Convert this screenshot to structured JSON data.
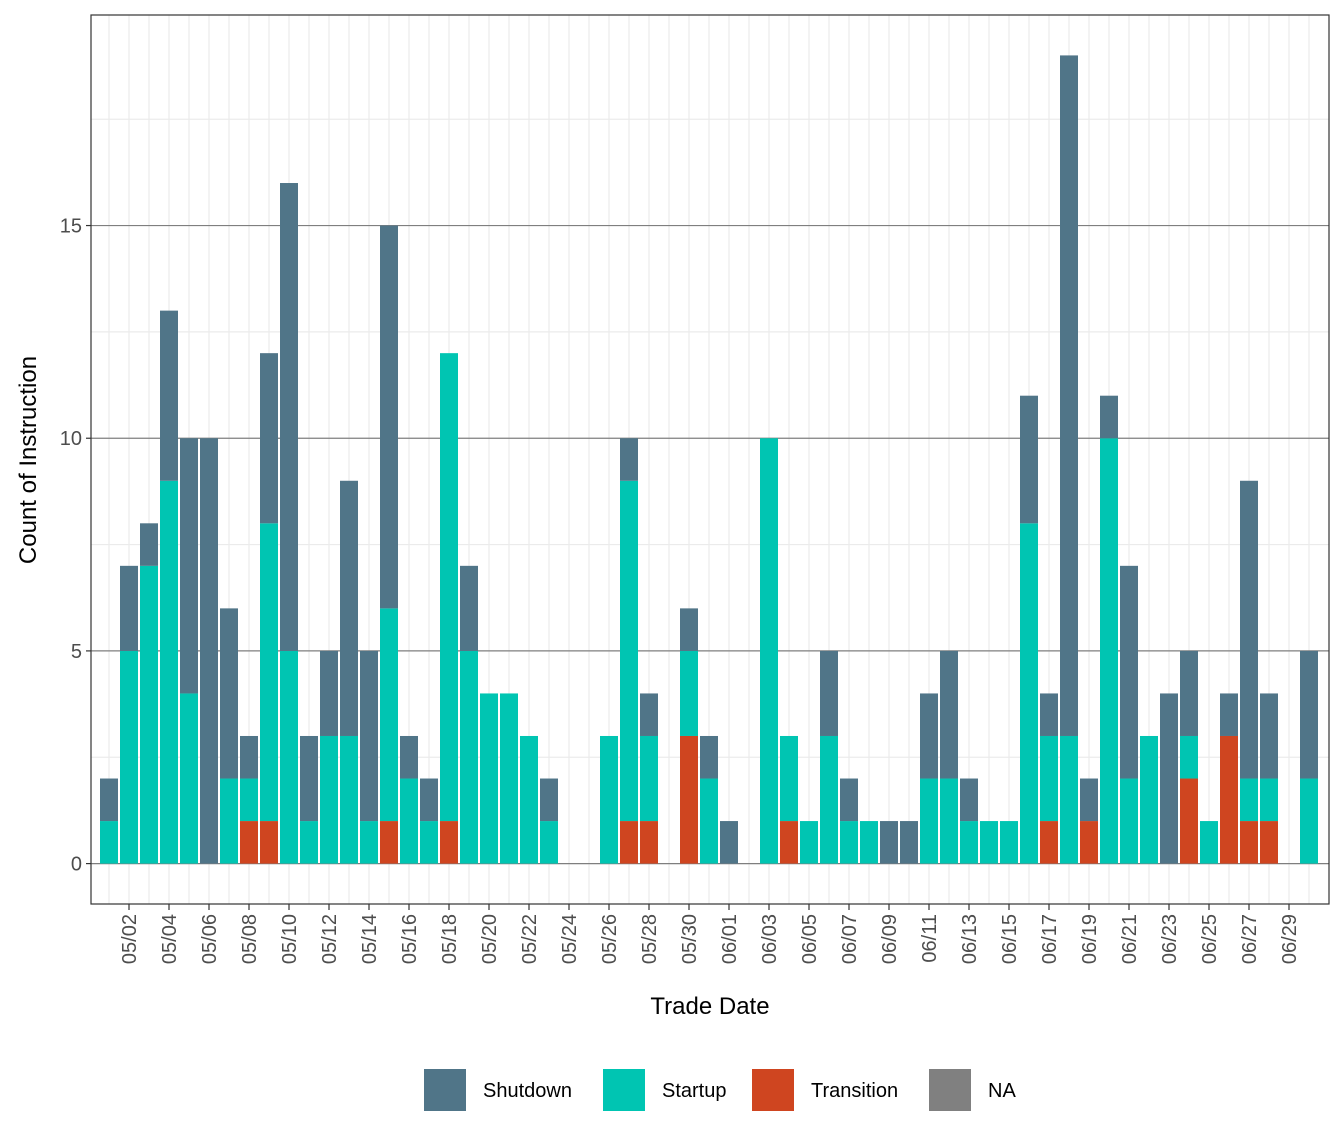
{
  "chart_data": {
    "type": "bar",
    "stacked": true,
    "title": "",
    "xlabel": "Trade Date",
    "ylabel": "Count of Instruction",
    "ylim": [
      -0.95,
      19.95
    ],
    "yticks": [
      0,
      5,
      10,
      15
    ],
    "grid": true,
    "legend_position": "bottom",
    "x_tick_labels": [
      "05/02",
      "05/04",
      "05/06",
      "05/08",
      "05/10",
      "05/12",
      "05/14",
      "05/16",
      "05/18",
      "05/20",
      "05/22",
      "05/24",
      "05/26",
      "05/28",
      "05/30",
      "06/01",
      "06/03",
      "06/05",
      "06/07",
      "06/09",
      "06/11",
      "06/13",
      "06/15",
      "06/17",
      "06/19",
      "06/21",
      "06/23",
      "06/25",
      "06/27",
      "06/29"
    ],
    "categories": [
      "05/01",
      "05/02",
      "05/03",
      "05/04",
      "05/05",
      "05/06",
      "05/07",
      "05/08",
      "05/09",
      "05/10",
      "05/11",
      "05/12",
      "05/13",
      "05/14",
      "05/15",
      "05/16",
      "05/17",
      "05/18",
      "05/19",
      "05/20",
      "05/21",
      "05/22",
      "05/23",
      "05/24",
      "05/25",
      "05/26",
      "05/27",
      "05/28",
      "05/29",
      "05/30",
      "05/31",
      "06/01",
      "06/02",
      "06/03",
      "06/04",
      "06/05",
      "06/06",
      "06/07",
      "06/08",
      "06/09",
      "06/10",
      "06/11",
      "06/12",
      "06/13",
      "06/14",
      "06/15",
      "06/16",
      "06/17",
      "06/18",
      "06/19",
      "06/20",
      "06/21",
      "06/22",
      "06/23",
      "06/24",
      "06/25",
      "06/26",
      "06/27",
      "06/28",
      "06/29",
      "06/30"
    ],
    "series": [
      {
        "name": "Transition",
        "color": "#CF4520",
        "values": [
          0,
          0,
          0,
          0,
          0,
          0,
          0,
          1,
          1,
          0,
          0,
          0,
          0,
          0,
          1,
          0,
          0,
          1,
          0,
          0,
          0,
          0,
          0,
          0,
          0,
          0,
          1,
          1,
          0,
          3,
          0,
          0,
          0,
          0,
          1,
          0,
          0,
          0,
          0,
          0,
          0,
          0,
          0,
          0,
          0,
          0,
          0,
          1,
          0,
          1,
          0,
          0,
          0,
          0,
          2,
          0,
          3,
          1,
          1,
          0,
          0
        ]
      },
      {
        "name": "Startup",
        "color": "#00C5B2",
        "values": [
          1,
          5,
          7,
          9,
          4,
          0,
          2,
          1,
          7,
          5,
          1,
          3,
          3,
          1,
          5,
          2,
          1,
          11,
          5,
          4,
          4,
          3,
          1,
          0,
          0,
          3,
          8,
          2,
          0,
          2,
          2,
          0,
          0,
          10,
          2,
          1,
          3,
          1,
          1,
          0,
          0,
          2,
          2,
          1,
          1,
          1,
          8,
          2,
          3,
          0,
          10,
          2,
          3,
          0,
          1,
          1,
          0,
          1,
          1,
          0,
          2
        ]
      },
      {
        "name": "Shutdown",
        "color": "#507588",
        "values": [
          1,
          2,
          1,
          4,
          6,
          10,
          4,
          1,
          4,
          11,
          2,
          2,
          6,
          4,
          9,
          1,
          1,
          0,
          2,
          0,
          0,
          0,
          1,
          0,
          0,
          0,
          1,
          1,
          0,
          1,
          1,
          1,
          0,
          0,
          0,
          0,
          2,
          1,
          0,
          1,
          1,
          2,
          3,
          1,
          0,
          0,
          3,
          1,
          16,
          1,
          1,
          5,
          0,
          4,
          2,
          0,
          1,
          7,
          2,
          0,
          3
        ]
      }
    ],
    "legend": [
      {
        "name": "Shutdown",
        "color": "#507588"
      },
      {
        "name": "Startup",
        "color": "#00C5B2"
      },
      {
        "name": "Transition",
        "color": "#CF4520"
      },
      {
        "name": "NA",
        "color": "#808080"
      }
    ]
  }
}
